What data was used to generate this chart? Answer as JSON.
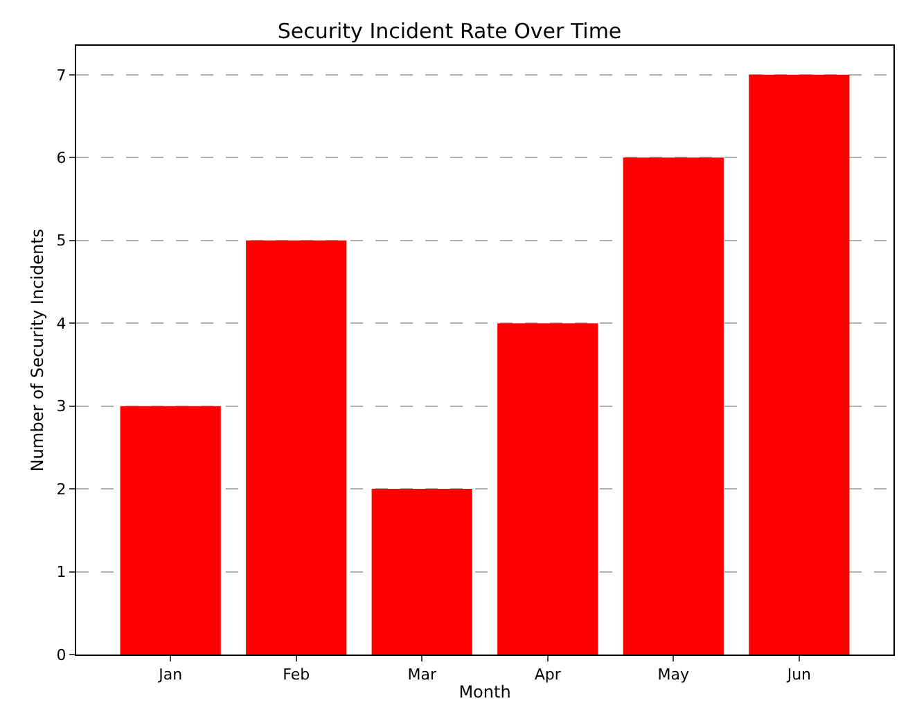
{
  "chart_data": {
    "type": "bar",
    "title": "Security Incident Rate Over Time",
    "xlabel": "Month",
    "ylabel": "Number of Security Incidents",
    "categories": [
      "Jan",
      "Feb",
      "Mar",
      "Apr",
      "May",
      "Jun"
    ],
    "series": [
      {
        "color": "#ff0000",
        "values": [
          3,
          5,
          2,
          4,
          6,
          7
        ]
      }
    ],
    "ylim": [
      0,
      7.35
    ],
    "yticks": [
      0,
      1,
      2,
      3,
      4,
      5,
      6,
      7
    ],
    "grid": "y",
    "line_style": "dashed"
  }
}
